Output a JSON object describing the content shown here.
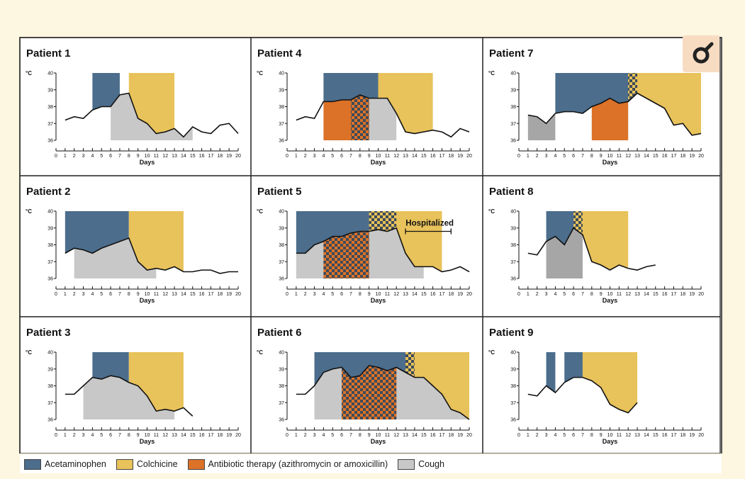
{
  "colors": {
    "acetaminophen": "#4c6d8c",
    "colchicine": "#e8c25a",
    "antibiotic": "#dc7228",
    "cough": "#c8c8c8",
    "cough_dark": "#a6a6a6",
    "checker_dark": "#3d4b5a"
  },
  "legend": {
    "items": [
      {
        "label": "Acetaminophen",
        "color": "#4c6d8c"
      },
      {
        "label": "Colchicine",
        "color": "#e8c25a"
      },
      {
        "label": "Antibiotic therapy (azithromycin or amoxicillin)",
        "color": "#dc7228"
      },
      {
        "label": "Cough",
        "color": "#c8c8c8"
      }
    ]
  },
  "zoom_icon": "magnifier-icon",
  "chart_data": [
    {
      "type": "line",
      "title": "Patient 1",
      "xlabel": "Days",
      "ylabel": "°C",
      "xlim": [
        0,
        20
      ],
      "ylim": [
        36,
        40
      ],
      "yticks": [
        36,
        37,
        38,
        39,
        40
      ],
      "x": [
        1,
        2,
        3,
        4,
        5,
        6,
        7,
        8,
        9,
        10,
        11,
        12,
        13,
        14,
        15,
        16,
        17,
        18,
        19,
        20
      ],
      "temperature": [
        37.2,
        37.4,
        37.3,
        37.8,
        38.0,
        38.0,
        38.7,
        38.8,
        37.3,
        37.0,
        36.4,
        36.5,
        36.7,
        36.2,
        36.8,
        36.5,
        36.4,
        36.9,
        37.0,
        36.4
      ],
      "treatments": [
        {
          "agent": "Acetaminophen",
          "start": 4,
          "end": 7
        },
        {
          "agent": "Colchicine",
          "start": 8,
          "end": 13
        },
        {
          "agent": "Cough",
          "start": 6,
          "end": 15
        }
      ]
    },
    {
      "type": "line",
      "title": "Patient 2",
      "xlabel": "Days",
      "ylabel": "°C",
      "xlim": [
        0,
        20
      ],
      "ylim": [
        36,
        40
      ],
      "yticks": [
        36,
        37,
        38,
        39,
        40
      ],
      "x": [
        1,
        2,
        3,
        4,
        5,
        6,
        7,
        8,
        9,
        10,
        11,
        12,
        13,
        14,
        15,
        16,
        17,
        18,
        19,
        20
      ],
      "temperature": [
        37.5,
        37.8,
        37.7,
        37.5,
        37.8,
        38.0,
        38.2,
        38.4,
        37.0,
        36.5,
        36.6,
        36.5,
        36.7,
        36.4,
        36.4,
        36.5,
        36.5,
        36.3,
        36.4,
        36.4
      ],
      "treatments": [
        {
          "agent": "Acetaminophen",
          "start": 1,
          "end": 8
        },
        {
          "agent": "Colchicine",
          "start": 8,
          "end": 14
        },
        {
          "agent": "Cough",
          "start": 2,
          "end": 11
        }
      ]
    },
    {
      "type": "line",
      "title": "Patient 3",
      "xlabel": "Days",
      "ylabel": "°C",
      "xlim": [
        0,
        20
      ],
      "ylim": [
        36,
        40
      ],
      "yticks": [
        36,
        37,
        38,
        39,
        40
      ],
      "x": [
        1,
        2,
        3,
        4,
        5,
        6,
        7,
        8,
        9,
        10,
        11,
        12,
        13,
        14,
        15
      ],
      "temperature": [
        37.5,
        37.5,
        38.0,
        38.5,
        38.4,
        38.6,
        38.5,
        38.2,
        38.0,
        37.4,
        36.5,
        36.6,
        36.5,
        36.7,
        36.2
      ],
      "treatments": [
        {
          "agent": "Acetaminophen",
          "start": 4,
          "end": 8
        },
        {
          "agent": "Colchicine",
          "start": 8,
          "end": 14
        },
        {
          "agent": "Cough",
          "start": 3,
          "end": 13
        }
      ]
    },
    {
      "type": "line",
      "title": "Patient 4",
      "xlabel": "Days",
      "ylabel": "°C",
      "xlim": [
        0,
        20
      ],
      "ylim": [
        36,
        40
      ],
      "yticks": [
        36,
        37,
        38,
        39,
        40
      ],
      "x": [
        1,
        2,
        3,
        4,
        5,
        6,
        7,
        8,
        9,
        10,
        11,
        12,
        13,
        14,
        15,
        16,
        17,
        18,
        19,
        20
      ],
      "temperature": [
        37.2,
        37.4,
        37.3,
        38.3,
        38.3,
        38.4,
        38.4,
        38.7,
        38.5,
        38.5,
        38.5,
        37.6,
        36.5,
        36.4,
        36.5,
        36.6,
        36.5,
        36.2,
        36.7,
        36.5
      ],
      "treatments": [
        {
          "agent": "Acetaminophen",
          "start": 4,
          "end": 10
        },
        {
          "agent": "Colchicine",
          "start": 10,
          "end": 16
        },
        {
          "agent": "Antibiotic therapy (azithromycin or amoxicillin)",
          "start": 4,
          "end": 9
        },
        {
          "agent": "Cough",
          "start": 7,
          "end": 12
        }
      ]
    },
    {
      "type": "line",
      "title": "Patient 5",
      "xlabel": "Days",
      "ylabel": "°C",
      "xlim": [
        0,
        20
      ],
      "ylim": [
        36,
        40
      ],
      "yticks": [
        36,
        37,
        38,
        39,
        40
      ],
      "x": [
        1,
        2,
        3,
        4,
        5,
        6,
        7,
        8,
        9,
        10,
        11,
        12,
        13,
        14,
        15,
        16,
        17,
        18,
        19,
        20
      ],
      "temperature": [
        37.5,
        37.5,
        38.0,
        38.2,
        38.5,
        38.5,
        38.7,
        38.8,
        38.8,
        38.9,
        38.8,
        39.0,
        37.5,
        36.7,
        36.7,
        36.7,
        36.4,
        36.5,
        36.7,
        36.4
      ],
      "treatments": [
        {
          "agent": "Acetaminophen",
          "start": 1,
          "end": 12
        },
        {
          "agent": "Colchicine",
          "start": 9,
          "end": 17
        },
        {
          "agent": "Antibiotic therapy (azithromycin or amoxicillin)",
          "start": 4,
          "end": 9
        },
        {
          "agent": "Cough",
          "start": 1,
          "end": 15
        }
      ],
      "annotation": {
        "label": "Hospitalized",
        "start": 13,
        "end": 18
      }
    },
    {
      "type": "line",
      "title": "Patient 6",
      "xlabel": "Days",
      "ylabel": "°C",
      "xlim": [
        0,
        20
      ],
      "ylim": [
        36,
        40
      ],
      "yticks": [
        36,
        37,
        38,
        39,
        40
      ],
      "x": [
        1,
        2,
        3,
        4,
        5,
        6,
        7,
        8,
        9,
        10,
        11,
        12,
        13,
        14,
        15,
        16,
        17,
        18,
        19,
        20
      ],
      "temperature": [
        37.5,
        37.5,
        38.0,
        38.8,
        39.0,
        39.1,
        38.5,
        38.6,
        39.2,
        39.1,
        38.9,
        39.1,
        38.8,
        38.5,
        38.5,
        38.0,
        37.5,
        36.6,
        36.4,
        36.0
      ],
      "treatments": [
        {
          "agent": "Acetaminophen",
          "start": 3,
          "end": 14
        },
        {
          "agent": "Colchicine",
          "start": 13,
          "end": 20
        },
        {
          "agent": "Antibiotic therapy (azithromycin or amoxicillin)",
          "start": 6,
          "end": 12
        },
        {
          "agent": "Cough",
          "start": 3,
          "end": 20
        }
      ]
    },
    {
      "type": "line",
      "title": "Patient 7",
      "xlabel": "Days",
      "ylabel": "°C",
      "xlim": [
        0,
        20
      ],
      "ylim": [
        36,
        40
      ],
      "yticks": [
        36,
        37,
        38,
        39,
        40
      ],
      "x": [
        1,
        2,
        3,
        4,
        5,
        6,
        7,
        8,
        9,
        10,
        11,
        12,
        13,
        14,
        15,
        16,
        17,
        18,
        19,
        20
      ],
      "temperature": [
        37.5,
        37.4,
        37.0,
        37.6,
        37.7,
        37.7,
        37.6,
        38.0,
        38.2,
        38.5,
        38.2,
        38.3,
        38.8,
        38.5,
        38.2,
        37.9,
        36.9,
        37.0,
        36.3,
        36.4
      ],
      "treatments": [
        {
          "agent": "Acetaminophen",
          "start": 4,
          "end": 13
        },
        {
          "agent": "Colchicine",
          "start": 12,
          "end": 20
        },
        {
          "agent": "Antibiotic therapy (azithromycin or amoxicillin)",
          "start": 8,
          "end": 12
        },
        {
          "agent": "Cough",
          "start": 1,
          "end": 4
        }
      ]
    },
    {
      "type": "line",
      "title": "Patient 8",
      "xlabel": "Days",
      "ylabel": "°C",
      "xlim": [
        0,
        20
      ],
      "ylim": [
        36,
        40
      ],
      "yticks": [
        36,
        37,
        38,
        39,
        40
      ],
      "x": [
        1,
        2,
        3,
        4,
        5,
        6,
        7,
        8,
        9,
        10,
        11,
        12,
        13,
        14,
        15
      ],
      "temperature": [
        37.5,
        37.4,
        38.2,
        38.5,
        38.0,
        39.0,
        38.6,
        37.0,
        36.8,
        36.5,
        36.8,
        36.6,
        36.5,
        36.7,
        36.8
      ],
      "treatments": [
        {
          "agent": "Acetaminophen",
          "start": 3,
          "end": 7
        },
        {
          "agent": "Colchicine",
          "start": 6,
          "end": 12
        },
        {
          "agent": "Cough",
          "start": 3,
          "end": 7
        }
      ]
    },
    {
      "type": "line",
      "title": "Patient 9",
      "xlabel": "Days",
      "ylabel": "°C",
      "xlim": [
        0,
        20
      ],
      "ylim": [
        36,
        40
      ],
      "yticks": [
        36,
        37,
        38,
        39,
        40
      ],
      "x": [
        1,
        2,
        3,
        4,
        5,
        6,
        7,
        8,
        9,
        10,
        11,
        12,
        13
      ],
      "temperature": [
        37.5,
        37.4,
        38.0,
        37.6,
        38.2,
        38.5,
        38.5,
        38.3,
        37.9,
        36.9,
        36.6,
        36.4,
        37.0
      ],
      "treatments": [
        {
          "agent": "Acetaminophen",
          "start": 3,
          "end": 4
        },
        {
          "agent": "Acetaminophen",
          "start": 5,
          "end": 7
        },
        {
          "agent": "Colchicine",
          "start": 7,
          "end": 13
        }
      ]
    }
  ]
}
